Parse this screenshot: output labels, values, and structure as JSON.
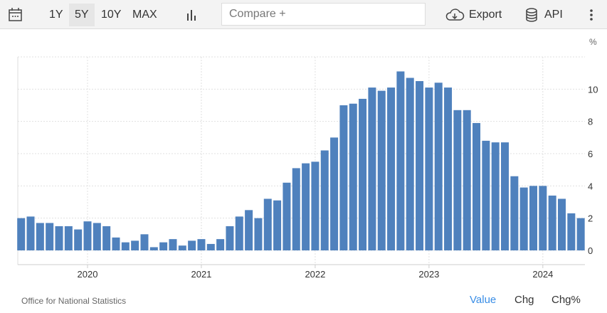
{
  "toolbar": {
    "ranges": [
      "1Y",
      "5Y",
      "10Y",
      "MAX"
    ],
    "selected_range": "5Y",
    "compare_placeholder": "Compare +",
    "export_label": "Export",
    "api_label": "API"
  },
  "footer": {
    "source": "Office for National Statistics",
    "tabs": [
      "Value",
      "Chg",
      "Chg%"
    ],
    "active_tab": "Value"
  },
  "colors": {
    "bar": "#4f81bd",
    "active_tab": "#3a8ee6"
  },
  "chart_data": {
    "type": "bar",
    "unit": "%",
    "categories": [
      "2019-06",
      "2019-07",
      "2019-08",
      "2019-09",
      "2019-10",
      "2019-11",
      "2019-12",
      "2020-01",
      "2020-02",
      "2020-03",
      "2020-04",
      "2020-05",
      "2020-06",
      "2020-07",
      "2020-08",
      "2020-09",
      "2020-10",
      "2020-11",
      "2020-12",
      "2021-01",
      "2021-02",
      "2021-03",
      "2021-04",
      "2021-05",
      "2021-06",
      "2021-07",
      "2021-08",
      "2021-09",
      "2021-10",
      "2021-11",
      "2021-12",
      "2022-01",
      "2022-02",
      "2022-03",
      "2022-04",
      "2022-05",
      "2022-06",
      "2022-07",
      "2022-08",
      "2022-09",
      "2022-10",
      "2022-11",
      "2022-12",
      "2023-01",
      "2023-02",
      "2023-03",
      "2023-04",
      "2023-05",
      "2023-06",
      "2023-07",
      "2023-08",
      "2023-09",
      "2023-10",
      "2023-11",
      "2023-12",
      "2024-01",
      "2024-02",
      "2024-03",
      "2024-04",
      "2024-05"
    ],
    "values": [
      2.0,
      2.1,
      1.7,
      1.7,
      1.5,
      1.5,
      1.3,
      1.8,
      1.7,
      1.5,
      0.8,
      0.5,
      0.6,
      1.0,
      0.2,
      0.5,
      0.7,
      0.3,
      0.6,
      0.7,
      0.4,
      0.7,
      1.5,
      2.1,
      2.5,
      2.0,
      3.2,
      3.1,
      4.2,
      5.1,
      5.4,
      5.5,
      6.2,
      7.0,
      9.0,
      9.1,
      9.4,
      10.1,
      9.9,
      10.1,
      11.1,
      10.7,
      10.5,
      10.1,
      10.4,
      10.1,
      8.7,
      8.7,
      7.9,
      6.8,
      6.7,
      6.7,
      4.6,
      3.9,
      4.0,
      4.0,
      3.4,
      3.2,
      2.3,
      2.0
    ],
    "x_ticks": [
      "2020",
      "2021",
      "2022",
      "2023",
      "2024"
    ],
    "y_ticks": [
      0,
      2,
      4,
      6,
      8,
      10
    ],
    "ylim": [
      0,
      12
    ],
    "grid": true,
    "y_axis_side": "right"
  }
}
